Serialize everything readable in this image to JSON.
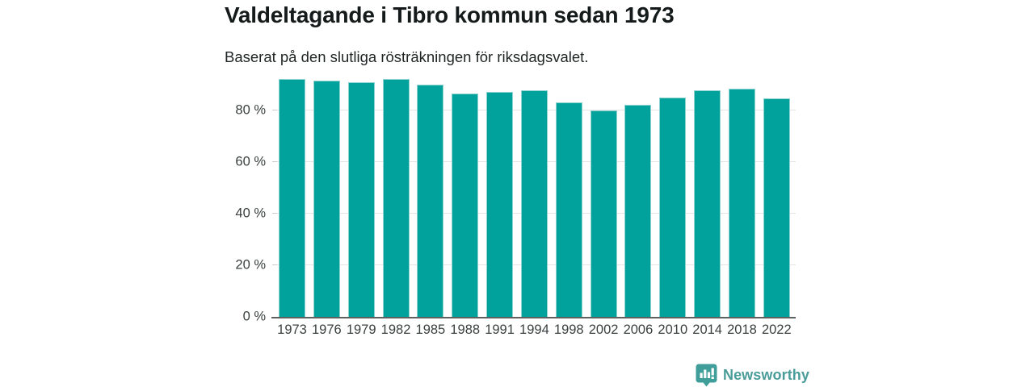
{
  "header": {
    "title": "Valdeltagande i Tibro kommun sedan 1973",
    "subtitle": "Baserat på den slutliga rösträkningen för riksdagsvalet."
  },
  "chart_data": {
    "type": "bar",
    "title": "Valdeltagande i Tibro kommun sedan 1973",
    "subtitle": "Baserat på den slutliga rösträkningen för riksdagsvalet.",
    "categories": [
      "1973",
      "1976",
      "1979",
      "1982",
      "1985",
      "1988",
      "1991",
      "1994",
      "1998",
      "2002",
      "2006",
      "2010",
      "2014",
      "2018",
      "2022"
    ],
    "values": [
      92.3,
      91.7,
      91.0,
      92.3,
      90.1,
      86.6,
      87.3,
      88.0,
      83.1,
      80.2,
      82.2,
      85.0,
      88.0,
      88.5,
      84.7
    ],
    "unit": "%",
    "xlabel": "",
    "ylabel": "",
    "ylim": [
      0,
      95
    ],
    "yticks": [
      0,
      20,
      40,
      60,
      80
    ],
    "ytick_labels": [
      "0 %",
      "20 %",
      "40 %",
      "60 %",
      "80 %"
    ],
    "grid": true,
    "gridline_color": "#e4e4e4",
    "legend": false,
    "bar_color": "#00a29b",
    "bar_edge_color": "#8ed3cf",
    "axis_color": "#5f6161",
    "label_color": "#3a3f3f"
  },
  "branding": {
    "logo_text": "Newsworthy",
    "logo_color": "#3f9e9a",
    "logo_text_color": "#4a9c99",
    "logo_icon": "bar-chart-badge-icon"
  }
}
